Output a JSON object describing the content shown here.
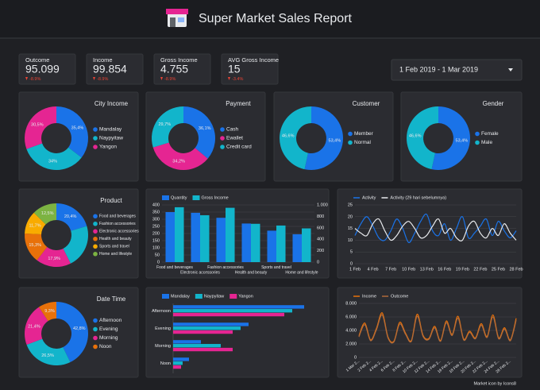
{
  "header": {
    "title": "Super Market Sales Report"
  },
  "kpis": [
    {
      "label": "Outcome",
      "value": "95.099",
      "change": "-8.9%"
    },
    {
      "label": "Income",
      "value": "99.854",
      "change": "-8.9%"
    },
    {
      "label": "Gross Income",
      "value": "4.755",
      "change": "-8.9%"
    },
    {
      "label": "AVG Gross Income",
      "value": "15",
      "change": "-3.4%"
    }
  ],
  "date_range": "1 Feb 2019 - 1 Mar 2019",
  "footer": "Market icon by Icons8",
  "chart_data": [
    {
      "type": "pie",
      "donut": true,
      "title": "City Income",
      "categories": [
        "Mandalay",
        "Naypyitaw",
        "Yangon"
      ],
      "values": [
        35.4,
        34,
        30.5
      ],
      "value_labels": [
        "35,4%",
        "34%",
        "30,5%"
      ],
      "colors": [
        "#1a73e8",
        "#12b5cb",
        "#e52592"
      ]
    },
    {
      "type": "pie",
      "donut": true,
      "title": "Payment",
      "categories": [
        "Cash",
        "Ewallet",
        "Credit card"
      ],
      "values": [
        36.1,
        34.2,
        29.7
      ],
      "value_labels": [
        "36,1%",
        "34,2%",
        "29,7%"
      ],
      "colors": [
        "#1a73e8",
        "#e52592",
        "#12b5cb"
      ]
    },
    {
      "type": "pie",
      "donut": true,
      "title": "Customer",
      "categories": [
        "Member",
        "Normal"
      ],
      "values": [
        53.4,
        46.6
      ],
      "value_labels": [
        "53,4%",
        "46,6%"
      ],
      "colors": [
        "#1a73e8",
        "#12b5cb"
      ]
    },
    {
      "type": "pie",
      "donut": true,
      "title": "Gender",
      "categories": [
        "Female",
        "Male"
      ],
      "values": [
        53.4,
        46.6
      ],
      "value_labels": [
        "53,4%",
        "46,6%"
      ],
      "colors": [
        "#1a73e8",
        "#12b5cb"
      ]
    },
    {
      "type": "pie",
      "donut": true,
      "title": "Product",
      "categories": [
        "Food and beverages",
        "Fashion accessories",
        "Electronic accessories",
        "Health and beauty",
        "Sports and travel",
        "Home and lifestyle"
      ],
      "values": [
        20.4,
        22.2,
        17.9,
        15.3,
        11.7,
        12.5
      ],
      "value_labels": [
        "20,4%",
        null,
        "17,9%",
        "15,3%",
        "11,7%",
        "12,5%"
      ],
      "colors": [
        "#1a73e8",
        "#12b5cb",
        "#e52592",
        "#e8710a",
        "#f9ab00",
        "#7cb342"
      ]
    },
    {
      "type": "bar",
      "categories": [
        "Food and beverages",
        "Electronic accessories",
        "Fashion accessories",
        "Health and beauty",
        "Sports and travel",
        "Home and lifestyle"
      ],
      "series": [
        {
          "name": "Quantity",
          "color": "#1a73e8",
          "values": [
            350,
            345,
            310,
            270,
            220,
            195
          ]
        },
        {
          "name": "Gross Income",
          "color": "#12b5cb",
          "axis": "y2",
          "values": [
            960,
            820,
            950,
            670,
            640,
            590
          ]
        }
      ],
      "ylim": [
        0,
        400
      ],
      "yticks": [
        0,
        50,
        100,
        150,
        200,
        250,
        300,
        350,
        400
      ],
      "y2lim": [
        0,
        1000
      ],
      "y2ticks": [
        0,
        200,
        400,
        600,
        800,
        {
          "value": 1000,
          "label": "1.000"
        }
      ],
      "grid": true
    },
    {
      "type": "line",
      "categories": [
        "1 Feb",
        null,
        null,
        "4 Feb",
        null,
        null,
        "7 Feb",
        null,
        null,
        "10 Feb",
        null,
        null,
        "13 Feb",
        null,
        null,
        "16 Feb",
        null,
        null,
        "19 Feb",
        null,
        null,
        "22 Feb",
        null,
        null,
        "25 Feb",
        null,
        null,
        "28 Feb"
      ],
      "series": [
        {
          "name": "Activity",
          "color": "#1a73e8",
          "values": [
            12,
            17,
            20,
            16,
            11,
            10,
            14,
            19,
            15,
            9,
            13,
            18,
            21,
            14,
            12,
            17,
            10,
            15,
            20,
            11,
            13,
            16,
            19,
            12,
            18,
            14,
            11,
            14
          ]
        },
        {
          "name": "Activity (29 hari sebelumnya)",
          "color": "#e8eaed",
          "values": [
            15,
            13,
            12,
            17,
            19,
            14,
            10,
            12,
            16,
            18,
            15,
            11,
            12,
            16,
            19,
            13,
            15,
            11,
            10,
            16,
            18,
            13,
            11,
            15,
            12,
            17,
            13,
            10
          ]
        }
      ],
      "ylim": [
        0,
        25
      ],
      "yticks": [
        0,
        5,
        10,
        15,
        20,
        25
      ],
      "grid": true
    },
    {
      "type": "pie",
      "donut": true,
      "title": "Date Time",
      "categories": [
        "Afternoon",
        "Evening",
        "Morning",
        "Noon"
      ],
      "values": [
        42.8,
        26.5,
        21.4,
        9.3
      ],
      "value_labels": [
        "42,8%",
        "26,5%",
        "21,4%",
        "9,3%"
      ],
      "colors": [
        "#1a73e8",
        "#12b5cb",
        "#e52592",
        "#e8710a"
      ]
    },
    {
      "type": "hbar",
      "categories": [
        "Afternoon",
        "Evening",
        "Morning",
        "Noon"
      ],
      "series": [
        {
          "name": "Mandalay",
          "color": "#1a73e8",
          "values": [
            165,
            95,
            35,
            20
          ]
        },
        {
          "name": "Naypyitaw",
          "color": "#12b5cb",
          "values": [
            150,
            85,
            60,
            12
          ]
        },
        {
          "name": "Yangon",
          "color": "#e52592",
          "values": [
            140,
            75,
            75,
            10
          ]
        }
      ],
      "xlim": [
        0,
        170
      ]
    },
    {
      "type": "line",
      "categories": [
        "1 Mar 2...",
        null,
        "2 Feb 2...",
        null,
        "4 Feb 2...",
        null,
        "6 Feb 2...",
        null,
        "8 Feb 2...",
        null,
        "10 Feb 2...",
        null,
        "12 Feb 2...",
        null,
        "14 Feb 2...",
        null,
        "16 Feb 2...",
        null,
        "18 Feb 2...",
        null,
        "20 Feb 2...",
        null,
        "22 Feb 2...",
        null,
        "24 Feb 2...",
        null,
        "26 Feb 2...",
        null
      ],
      "series": [
        {
          "name": "Income",
          "color": "#e8710a",
          "values": [
            3200,
            5100,
            2600,
            4300,
            6600,
            3000,
            2400,
            5200,
            3600,
            2500,
            6400,
            3300,
            2800,
            4600,
            2500,
            5400,
            3400,
            6100,
            2700,
            3900,
            2900,
            5000,
            3100,
            6300,
            2900,
            4400,
            2600,
            5800
          ]
        },
        {
          "name": "Outcome",
          "color": "#b06a3a",
          "values": [
            3050,
            4850,
            2480,
            4100,
            6300,
            2860,
            2290,
            4950,
            3430,
            2380,
            6100,
            3140,
            2670,
            4380,
            2380,
            5150,
            3240,
            5810,
            2570,
            3710,
            2760,
            4760,
            2950,
            6000,
            2760,
            4190,
            2480,
            5520
          ]
        }
      ],
      "ylim": [
        0,
        8000
      ],
      "yticks": [
        0,
        {
          "value": 2000,
          "label": "2.000"
        },
        {
          "value": 4000,
          "label": "4.000"
        },
        {
          "value": 6000,
          "label": "6.000"
        },
        {
          "value": 8000,
          "label": "8.000"
        }
      ],
      "grid": true
    }
  ]
}
